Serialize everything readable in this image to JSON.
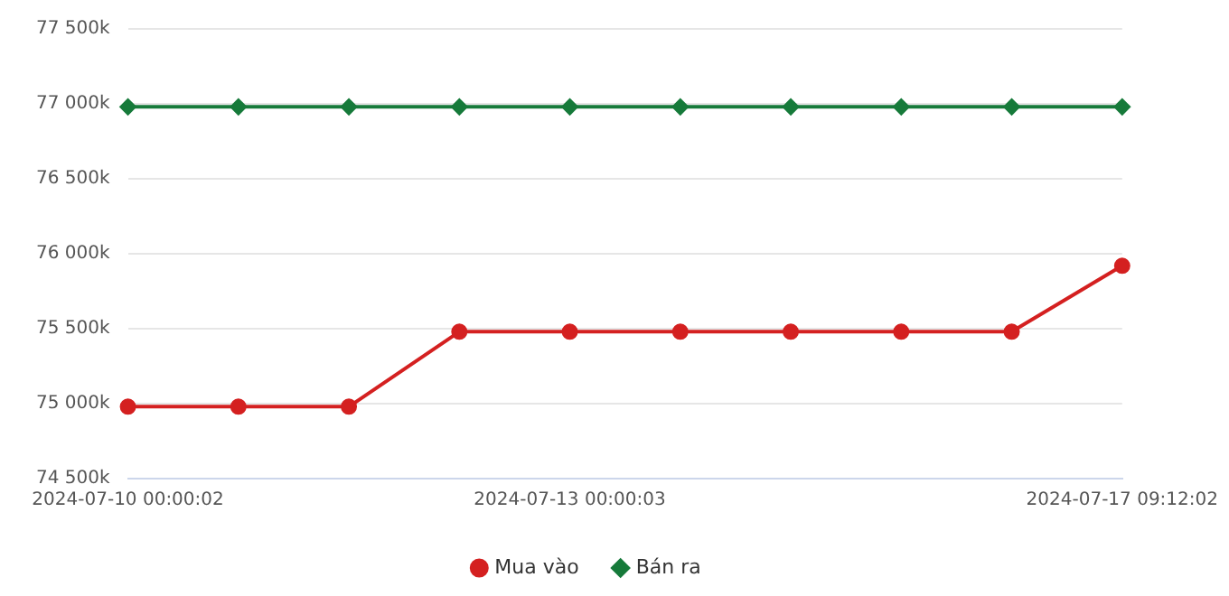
{
  "chart_data": {
    "type": "line",
    "categories": [
      "2024-07-10 00:00:02",
      null,
      null,
      null,
      "2024-07-13 00:00:03",
      null,
      null,
      null,
      null,
      "2024-07-17 09:12:02"
    ],
    "series": [
      {
        "name": "Mua vào",
        "color": "#d42020",
        "marker": "circle",
        "values": [
          74980,
          74980,
          74980,
          75480,
          75480,
          75480,
          75480,
          75480,
          75480,
          75920
        ]
      },
      {
        "name": "Bán ra",
        "color": "#167a3a",
        "marker": "diamond",
        "values": [
          76980,
          76980,
          76980,
          76980,
          76980,
          76980,
          76980,
          76980,
          76980,
          76980
        ]
      }
    ],
    "ylim": [
      74500,
      77500
    ],
    "yticks": [
      {
        "value": 74500,
        "label": "74 500k"
      },
      {
        "value": 75000,
        "label": "75 000k"
      },
      {
        "value": 75500,
        "label": "75 500k"
      },
      {
        "value": 76000,
        "label": "76 000k"
      },
      {
        "value": 76500,
        "label": "76 500k"
      },
      {
        "value": 77000,
        "label": "77 000k"
      },
      {
        "value": 77500,
        "label": "77 500k"
      }
    ],
    "grid": "y",
    "legend": "bottom"
  }
}
